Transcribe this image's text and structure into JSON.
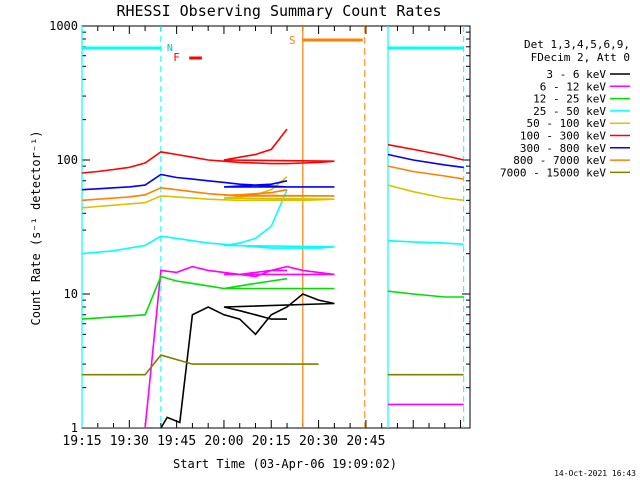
{
  "chart_data": {
    "type": "line",
    "title": "RHESSI Observing Summary Count Rates",
    "xlabel": "Start Time (03-Apr-06 19:09:02)",
    "ylabel": "Count Rate (s⁻¹ detector⁻¹)",
    "y_scale": "log",
    "ylim": [
      1,
      1000
    ],
    "xlim_minutes": [
      19.15,
      20.78
    ],
    "x_ticks": [
      "19:15",
      "19:30",
      "19:45",
      "20:00",
      "20:15",
      "20:30",
      "20:45"
    ],
    "y_ticks": [
      "1",
      "10",
      "100",
      "1000"
    ],
    "legend_header": [
      "Det 1,3,4,5,6,9,",
      "FDecim 2, Att 0"
    ],
    "legend_position": "right",
    "footer_date": "14-Oct-2021 16:43",
    "flags": {
      "N_label": "N",
      "F_label": "F",
      "S_label": "S",
      "night": [
        [
          19.15,
          19.4
        ],
        [
          20.52,
          20.76
        ]
      ],
      "flare": [
        [
          19.49,
          19.53
        ]
      ],
      "saa": [
        [
          20.25,
          20.44
        ]
      ]
    },
    "gaps": [
      [
        20.21,
        20.52
      ]
    ],
    "series": [
      {
        "name": "3 - 6 keV",
        "color": "#000000",
        "points": [
          [
            19.4,
            1.0
          ],
          [
            19.42,
            1.2
          ],
          [
            19.46,
            1.1
          ],
          [
            19.5,
            7.0
          ],
          [
            19.55,
            8.0
          ],
          [
            19.6,
            7.0
          ],
          [
            19.65,
            6.5
          ],
          [
            19.7,
            5.0
          ],
          [
            19.75,
            7.0
          ],
          [
            19.8,
            8.0
          ],
          [
            19.85,
            10.0
          ],
          [
            19.9,
            9.0
          ],
          [
            19.95,
            8.5
          ],
          [
            20.0,
            8.0
          ],
          [
            20.05,
            7.5
          ],
          [
            20.1,
            7.0
          ],
          [
            20.15,
            6.5
          ],
          [
            20.2,
            6.5
          ]
        ]
      },
      {
        "name": "6 - 12 keV",
        "color": "#ff00ff",
        "points": [
          [
            19.15,
            1.0
          ],
          [
            19.35,
            1.0
          ],
          [
            19.4,
            15.0
          ],
          [
            19.45,
            14.5
          ],
          [
            19.5,
            16.0
          ],
          [
            19.55,
            15.0
          ],
          [
            19.6,
            14.5
          ],
          [
            19.65,
            14.0
          ],
          [
            19.7,
            13.5
          ],
          [
            19.75,
            15.0
          ],
          [
            19.8,
            16.0
          ],
          [
            19.85,
            15.0
          ],
          [
            19.9,
            14.5
          ],
          [
            19.95,
            14.0
          ],
          [
            20.0,
            14.0
          ],
          [
            20.05,
            14.0
          ],
          [
            20.1,
            14.5
          ],
          [
            20.15,
            15.0
          ],
          [
            20.2,
            15.0
          ],
          [
            20.52,
            1.5
          ],
          [
            20.76,
            1.5
          ]
        ]
      },
      {
        "name": "12 - 25 keV",
        "color": "#00e000",
        "points": [
          [
            19.15,
            6.5
          ],
          [
            19.35,
            7.0
          ],
          [
            19.4,
            13.5
          ],
          [
            19.45,
            12.5
          ],
          [
            19.5,
            12.0
          ],
          [
            19.55,
            11.5
          ],
          [
            19.6,
            11.0
          ],
          [
            19.65,
            11.0
          ],
          [
            19.7,
            11.0
          ],
          [
            19.75,
            11.0
          ],
          [
            19.8,
            11.0
          ],
          [
            19.85,
            11.0
          ],
          [
            19.9,
            11.0
          ],
          [
            19.95,
            11.0
          ],
          [
            20.0,
            11.0
          ],
          [
            20.05,
            11.5
          ],
          [
            20.1,
            12.0
          ],
          [
            20.15,
            12.5
          ],
          [
            20.2,
            13.0
          ],
          [
            20.52,
            10.5
          ],
          [
            20.6,
            10.0
          ],
          [
            20.7,
            9.5
          ],
          [
            20.76,
            9.5
          ]
        ]
      },
      {
        "name": "25 - 50 keV",
        "color": "#00ffff",
        "points": [
          [
            19.15,
            20.0
          ],
          [
            19.2,
            20.5
          ],
          [
            19.25,
            21.0
          ],
          [
            19.3,
            22.0
          ],
          [
            19.35,
            23.0
          ],
          [
            19.4,
            27.0
          ],
          [
            19.45,
            26.0
          ],
          [
            19.5,
            25.0
          ],
          [
            19.55,
            24.0
          ],
          [
            19.6,
            23.5
          ],
          [
            19.65,
            23.0
          ],
          [
            19.7,
            22.5
          ],
          [
            19.75,
            22.0
          ],
          [
            19.8,
            22.0
          ],
          [
            19.85,
            22.0
          ],
          [
            19.9,
            22.0
          ],
          [
            19.95,
            22.5
          ],
          [
            20.0,
            23.0
          ],
          [
            20.05,
            24.0
          ],
          [
            20.1,
            26.0
          ],
          [
            20.15,
            32.0
          ],
          [
            20.2,
            60.0
          ],
          [
            20.52,
            25.0
          ],
          [
            20.6,
            24.5
          ],
          [
            20.7,
            24.0
          ],
          [
            20.76,
            23.5
          ]
        ]
      },
      {
        "name": "50 - 100 keV",
        "color": "#d4c400",
        "points": [
          [
            19.15,
            44.0
          ],
          [
            19.2,
            45.0
          ],
          [
            19.25,
            46.0
          ],
          [
            19.3,
            47.0
          ],
          [
            19.35,
            48.0
          ],
          [
            19.4,
            54.0
          ],
          [
            19.45,
            53.0
          ],
          [
            19.5,
            52.0
          ],
          [
            19.55,
            51.0
          ],
          [
            19.6,
            50.5
          ],
          [
            19.65,
            50.0
          ],
          [
            19.7,
            50.0
          ],
          [
            19.75,
            50.0
          ],
          [
            19.8,
            50.0
          ],
          [
            19.85,
            50.0
          ],
          [
            19.9,
            50.5
          ],
          [
            19.95,
            51.0
          ],
          [
            20.0,
            52.0
          ],
          [
            20.05,
            53.0
          ],
          [
            20.1,
            55.0
          ],
          [
            20.15,
            60.0
          ],
          [
            20.2,
            75.0
          ],
          [
            20.52,
            65.0
          ],
          [
            20.6,
            58.0
          ],
          [
            20.7,
            52.0
          ],
          [
            20.76,
            50.0
          ]
        ]
      },
      {
        "name": "100 - 300 keV",
        "color": "#ff0000",
        "points": [
          [
            19.15,
            80.0
          ],
          [
            19.2,
            82.0
          ],
          [
            19.25,
            85.0
          ],
          [
            19.3,
            88.0
          ],
          [
            19.35,
            95.0
          ],
          [
            19.4,
            115.0
          ],
          [
            19.45,
            110.0
          ],
          [
            19.5,
            105.0
          ],
          [
            19.55,
            100.0
          ],
          [
            19.6,
            98.0
          ],
          [
            19.65,
            96.0
          ],
          [
            19.7,
            95.0
          ],
          [
            19.75,
            94.0
          ],
          [
            19.8,
            94.0
          ],
          [
            19.85,
            95.0
          ],
          [
            19.9,
            96.0
          ],
          [
            19.95,
            98.0
          ],
          [
            20.0,
            100.0
          ],
          [
            20.05,
            105.0
          ],
          [
            20.1,
            110.0
          ],
          [
            20.15,
            120.0
          ],
          [
            20.2,
            170.0
          ],
          [
            20.52,
            130.0
          ],
          [
            20.6,
            120.0
          ],
          [
            20.7,
            108.0
          ],
          [
            20.76,
            100.0
          ]
        ]
      },
      {
        "name": "300 - 800 keV",
        "color": "#0000ff",
        "points": [
          [
            19.15,
            60.0
          ],
          [
            19.2,
            61.0
          ],
          [
            19.25,
            62.0
          ],
          [
            19.3,
            63.0
          ],
          [
            19.35,
            65.0
          ],
          [
            19.4,
            78.0
          ],
          [
            19.45,
            74.0
          ],
          [
            19.5,
            72.0
          ],
          [
            19.55,
            70.0
          ],
          [
            19.6,
            68.0
          ],
          [
            19.65,
            66.0
          ],
          [
            19.7,
            65.0
          ],
          [
            19.75,
            64.0
          ],
          [
            19.8,
            63.0
          ],
          [
            19.85,
            63.0
          ],
          [
            19.9,
            63.0
          ],
          [
            19.95,
            63.0
          ],
          [
            20.0,
            63.0
          ],
          [
            20.05,
            64.0
          ],
          [
            20.1,
            65.0
          ],
          [
            20.15,
            66.0
          ],
          [
            20.2,
            70.0
          ],
          [
            20.52,
            110.0
          ],
          [
            20.6,
            100.0
          ],
          [
            20.7,
            92.0
          ],
          [
            20.76,
            88.0
          ]
        ]
      },
      {
        "name": "800 - 7000 keV",
        "color": "#ff8000",
        "points": [
          [
            19.15,
            50.0
          ],
          [
            19.2,
            51.0
          ],
          [
            19.25,
            52.0
          ],
          [
            19.3,
            53.0
          ],
          [
            19.35,
            55.0
          ],
          [
            19.4,
            62.0
          ],
          [
            19.45,
            60.0
          ],
          [
            19.5,
            58.0
          ],
          [
            19.55,
            56.0
          ],
          [
            19.6,
            55.0
          ],
          [
            19.65,
            54.0
          ],
          [
            19.7,
            54.0
          ],
          [
            19.75,
            54.0
          ],
          [
            19.8,
            54.0
          ],
          [
            19.85,
            54.0
          ],
          [
            19.9,
            54.0
          ],
          [
            19.95,
            54.0
          ],
          [
            20.0,
            54.5
          ],
          [
            20.05,
            55.0
          ],
          [
            20.1,
            56.0
          ],
          [
            20.15,
            57.0
          ],
          [
            20.2,
            60.0
          ],
          [
            20.52,
            90.0
          ],
          [
            20.6,
            82.0
          ],
          [
            20.7,
            76.0
          ],
          [
            20.76,
            72.0
          ]
        ]
      },
      {
        "name": "7000 - 15000 keV",
        "color": "#808000",
        "points": [
          [
            19.15,
            2.5
          ],
          [
            19.35,
            2.5
          ],
          [
            19.4,
            3.5
          ],
          [
            19.5,
            3.0
          ],
          [
            19.6,
            3.0
          ],
          [
            19.7,
            3.0
          ],
          [
            19.8,
            3.0
          ],
          [
            19.9,
            3.0
          ],
          [
            20.0,
            3.0
          ],
          [
            20.1,
            3.0
          ],
          [
            20.2,
            3.0
          ],
          [
            20.52,
            2.5
          ],
          [
            20.76,
            2.5
          ]
        ]
      }
    ]
  }
}
